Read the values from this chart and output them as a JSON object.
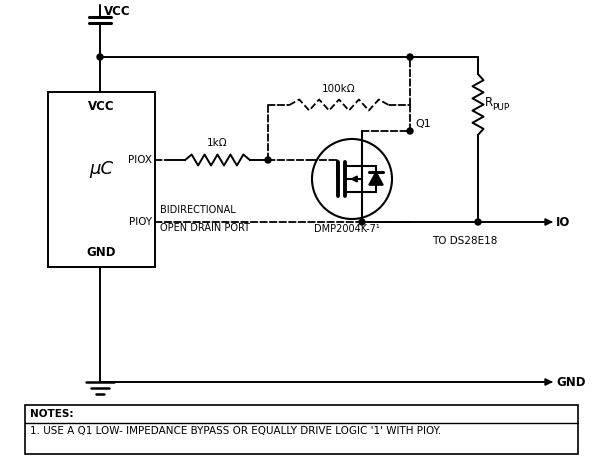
{
  "background_color": "#ffffff",
  "line_color": "#000000",
  "vcc_label": "VCC",
  "gnd_label": "GND",
  "piox_label": "PIOX",
  "pioy_label": "PIOY",
  "uc_label": "μC",
  "uc_vcc_label": "VCC",
  "uc_gnd_label": "GND",
  "r1_label": "1kΩ",
  "r2_label": "100kΩ",
  "rpup_label_r": "R",
  "rpup_label_sub": "PUP",
  "q1_label": "Q1",
  "mosfet_label": "DMP2004K-7¹",
  "io_label": "IO",
  "to_ds28e18_label": "TO DS28E18",
  "gnd_arrow_label": "GND",
  "bidir_line1": "BIDIRECTIONAL",
  "bidir_line2": "OPEN DRAIN PORT",
  "notes_header": "NOTES:",
  "note1": "1. USE A Q1 LOW- IMPEDANCE BYPASS OR EQUALLY DRIVE LOGIC '1' WITH PIOY."
}
